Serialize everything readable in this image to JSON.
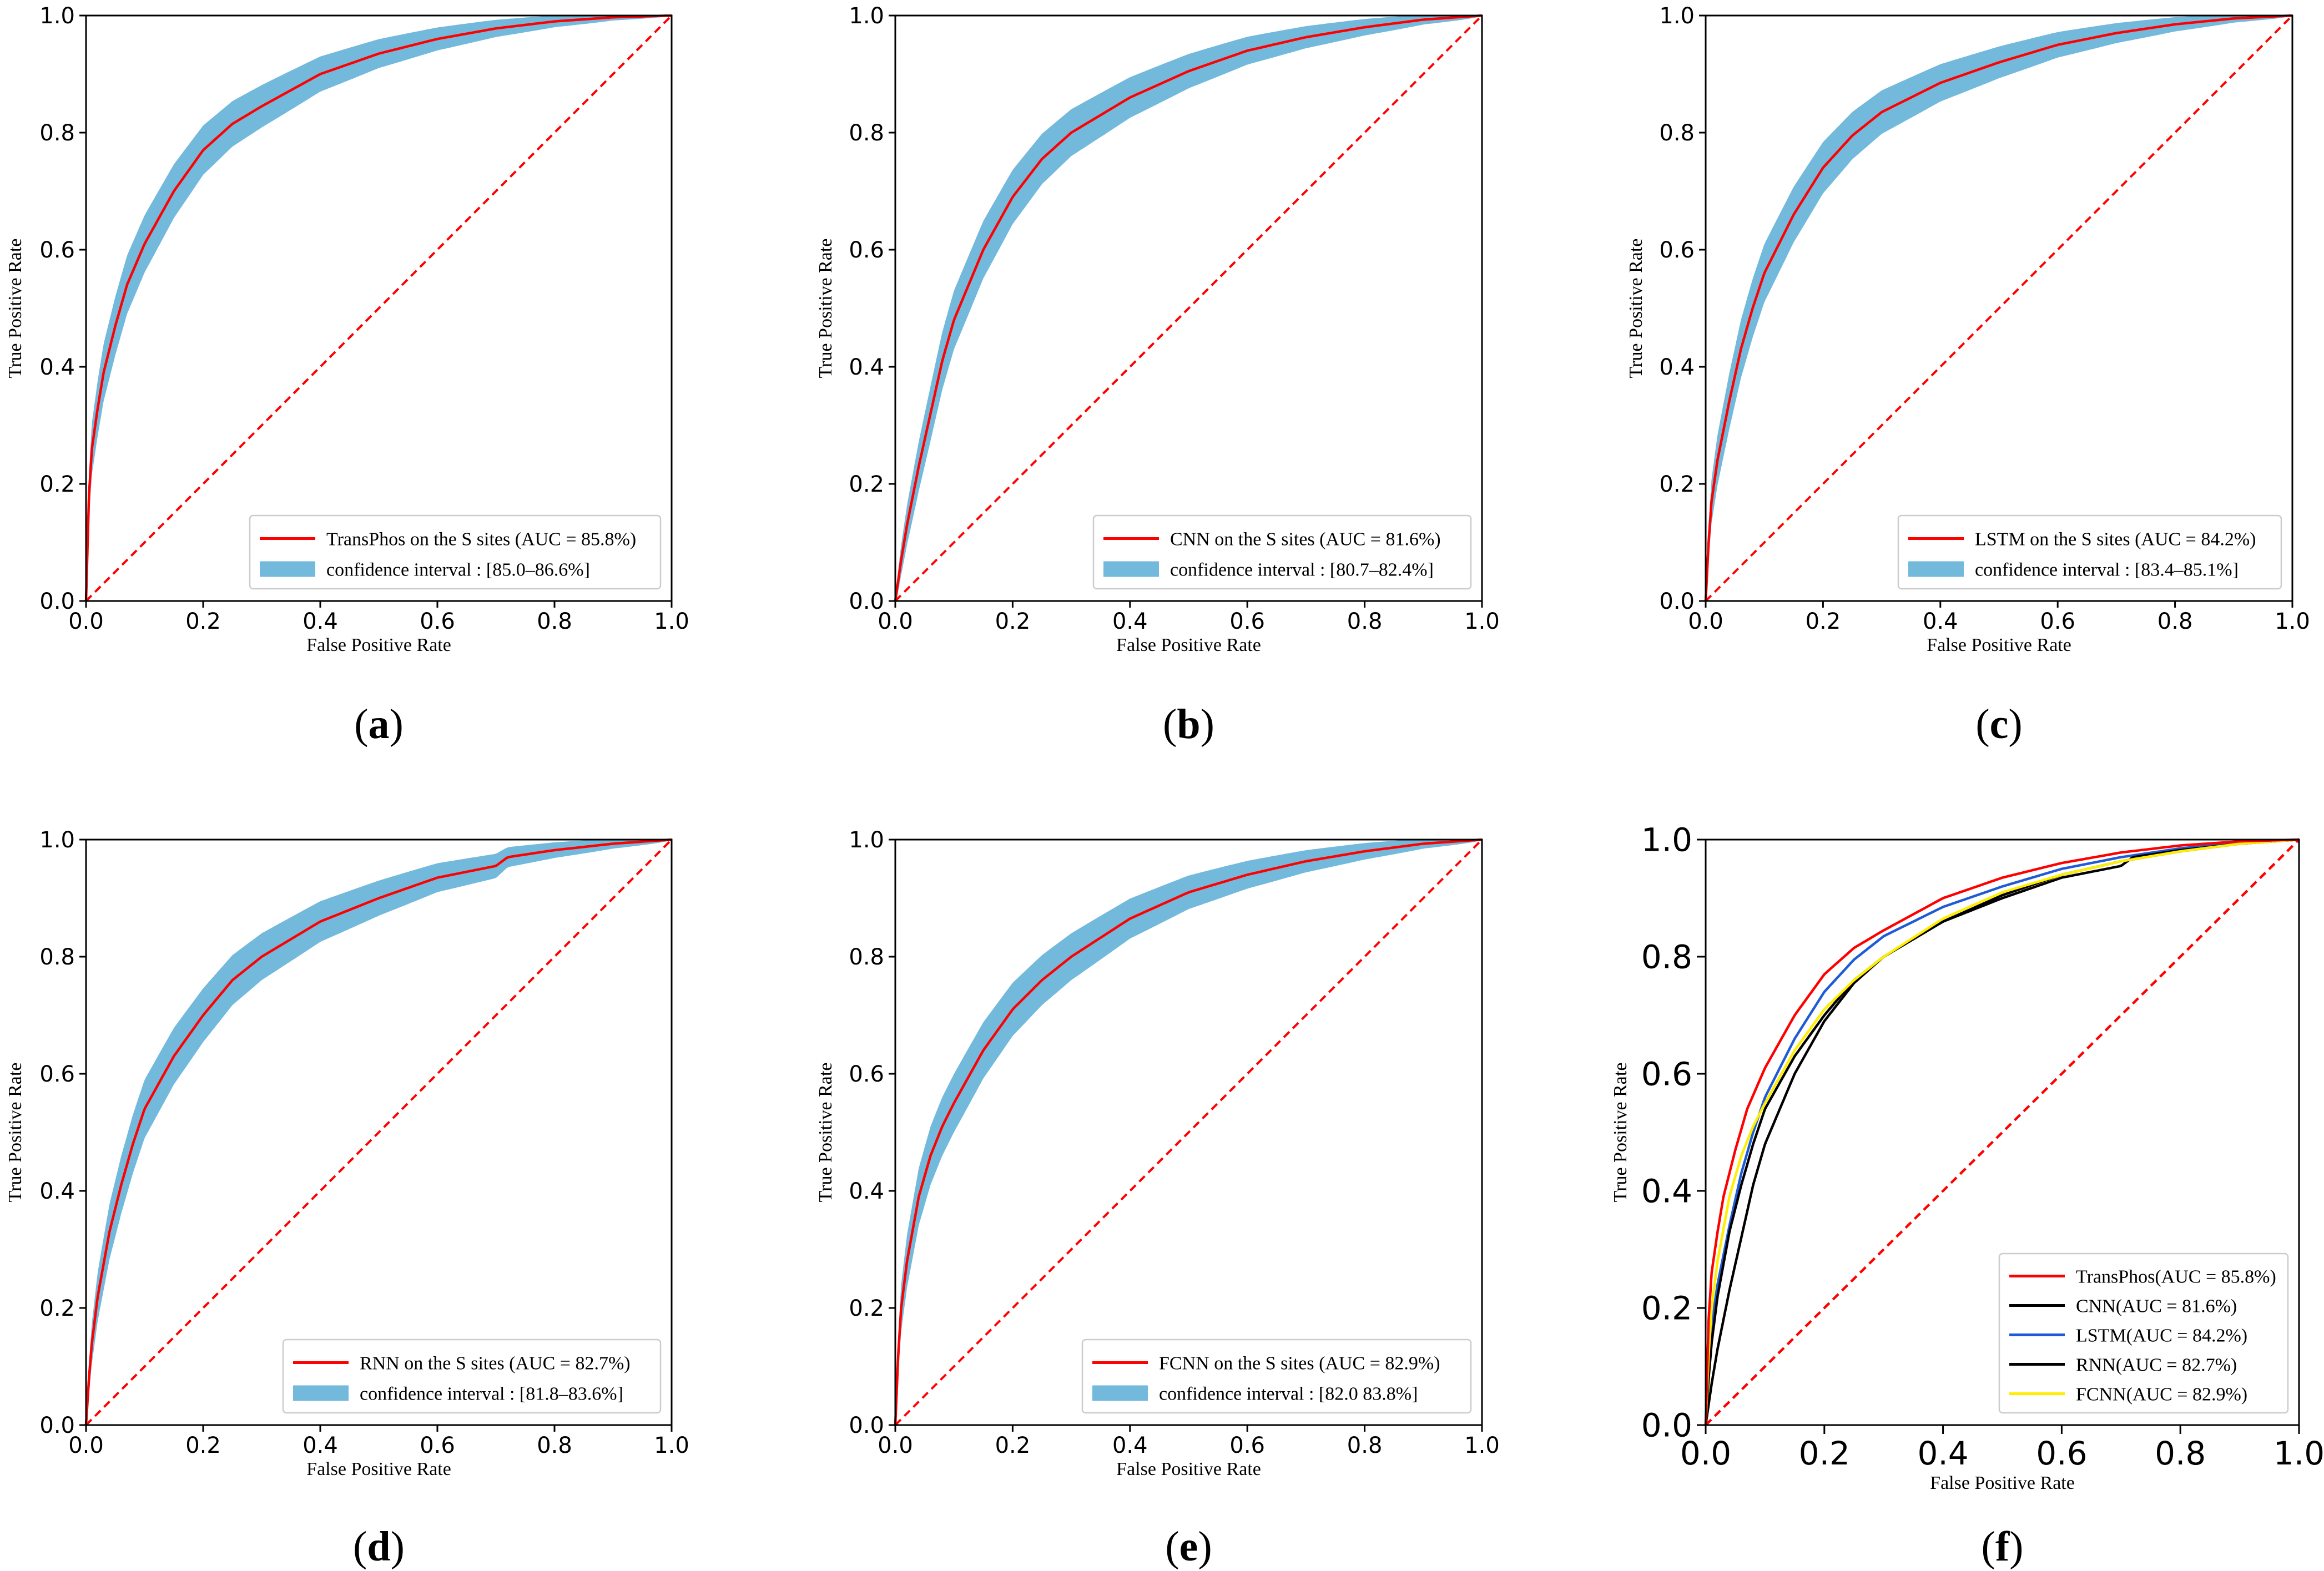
{
  "colors": {
    "band": "#72b9dc",
    "roc": "#ff0000",
    "diagonal": "#ff0000",
    "cnn_f": "#000000",
    "lstm_f": "#1f5bd6",
    "rnn_f": "#000000",
    "fcnn_f": "#ffee00"
  },
  "chart_data": [
    {
      "id": "a",
      "type": "line",
      "caption": {
        "open": "(",
        "letter": "a",
        "close": ")"
      },
      "xlabel": "False Positive Rate",
      "ylabel": "True Positive Rate",
      "xlim": [
        0,
        1
      ],
      "ylim": [
        0,
        1
      ],
      "xticks": [
        "0.0",
        "0.2",
        "0.4",
        "0.6",
        "0.8",
        "1.0"
      ],
      "yticks": [
        "0.0",
        "0.2",
        "0.4",
        "0.6",
        "0.8",
        "1.0"
      ],
      "series": [
        {
          "name": "TransPhos on the S sites (AUC = 85.8%)",
          "kind": "roc",
          "x": [
            0,
            0.005,
            0.01,
            0.02,
            0.03,
            0.05,
            0.07,
            0.1,
            0.15,
            0.2,
            0.25,
            0.3,
            0.4,
            0.5,
            0.6,
            0.7,
            0.8,
            0.9,
            1.0
          ],
          "y": [
            0,
            0.18,
            0.26,
            0.33,
            0.39,
            0.47,
            0.54,
            0.61,
            0.7,
            0.77,
            0.815,
            0.845,
            0.9,
            0.935,
            0.96,
            0.978,
            0.99,
            0.997,
            1.0
          ]
        },
        {
          "name": "confidence interval : [85.0–86.6%]",
          "kind": "band",
          "halfwidth": 0.05
        }
      ],
      "diagonal": true
    },
    {
      "id": "b",
      "type": "line",
      "caption": {
        "open": "(",
        "letter": "b",
        "close": ")"
      },
      "xlabel": "False Positive Rate",
      "ylabel": "True Positive Rate",
      "xlim": [
        0,
        1
      ],
      "ylim": [
        0,
        1
      ],
      "xticks": [
        "0.0",
        "0.2",
        "0.4",
        "0.6",
        "0.8",
        "1.0"
      ],
      "yticks": [
        "0.0",
        "0.2",
        "0.4",
        "0.6",
        "0.8",
        "1.0"
      ],
      "series": [
        {
          "name": "CNN on the S sites (AUC = 81.6%)",
          "kind": "roc",
          "x": [
            0,
            0.01,
            0.02,
            0.04,
            0.06,
            0.08,
            0.1,
            0.15,
            0.2,
            0.25,
            0.3,
            0.4,
            0.5,
            0.6,
            0.7,
            0.8,
            0.9,
            1.0
          ],
          "y": [
            0,
            0.07,
            0.13,
            0.23,
            0.32,
            0.41,
            0.48,
            0.6,
            0.69,
            0.755,
            0.8,
            0.86,
            0.905,
            0.94,
            0.963,
            0.98,
            0.993,
            1.0
          ]
        },
        {
          "name": "confidence interval : [80.7–82.4%]",
          "kind": "band",
          "halfwidth": 0.05
        }
      ],
      "diagonal": true
    },
    {
      "id": "c",
      "type": "line",
      "caption": {
        "open": "(",
        "letter": "c",
        "close": ")"
      },
      "xlabel": "False Positive Rate",
      "ylabel": "True Positive Rate",
      "xlim": [
        0,
        1
      ],
      "ylim": [
        0,
        1
      ],
      "xticks": [
        "0.0",
        "0.2",
        "0.4",
        "0.6",
        "0.8",
        "1.0"
      ],
      "yticks": [
        "0.0",
        "0.2",
        "0.4",
        "0.6",
        "0.8",
        "1.0"
      ],
      "series": [
        {
          "name": "LSTM on the S sites (AUC = 84.2%)",
          "kind": "roc",
          "x": [
            0,
            0.005,
            0.01,
            0.02,
            0.04,
            0.06,
            0.08,
            0.1,
            0.15,
            0.2,
            0.25,
            0.3,
            0.4,
            0.5,
            0.6,
            0.7,
            0.8,
            0.9,
            1.0
          ],
          "y": [
            0,
            0.1,
            0.17,
            0.24,
            0.34,
            0.43,
            0.5,
            0.56,
            0.66,
            0.74,
            0.795,
            0.835,
            0.885,
            0.92,
            0.95,
            0.97,
            0.985,
            0.995,
            1.0
          ]
        },
        {
          "name": "confidence interval : [83.4–85.1%]",
          "kind": "band",
          "halfwidth": 0.05
        }
      ],
      "diagonal": true
    },
    {
      "id": "d",
      "type": "line",
      "caption": {
        "open": "(",
        "letter": "d",
        "close": ")"
      },
      "xlabel": "False Positive Rate",
      "ylabel": "True Positive Rate",
      "xlim": [
        0,
        1
      ],
      "ylim": [
        0,
        1
      ],
      "xticks": [
        "0.0",
        "0.2",
        "0.4",
        "0.6",
        "0.8",
        "1.0"
      ],
      "yticks": [
        "0.0",
        "0.2",
        "0.4",
        "0.6",
        "0.8",
        "1.0"
      ],
      "series": [
        {
          "name": "RNN on the S sites (AUC = 82.7%)",
          "kind": "roc",
          "x": [
            0,
            0.005,
            0.01,
            0.02,
            0.04,
            0.06,
            0.08,
            0.1,
            0.15,
            0.2,
            0.25,
            0.3,
            0.4,
            0.5,
            0.6,
            0.7,
            0.72,
            0.8,
            0.9,
            1.0
          ],
          "y": [
            0,
            0.08,
            0.14,
            0.22,
            0.33,
            0.41,
            0.48,
            0.54,
            0.63,
            0.7,
            0.76,
            0.8,
            0.86,
            0.9,
            0.935,
            0.955,
            0.97,
            0.982,
            0.993,
            1.0
          ]
        },
        {
          "name": "confidence interval : [81.8–83.6%]",
          "kind": "band",
          "halfwidth": 0.05
        }
      ],
      "diagonal": true
    },
    {
      "id": "e",
      "type": "line",
      "caption": {
        "open": "(",
        "letter": "e",
        "close": ")"
      },
      "xlabel": "False Positive Rate",
      "ylabel": "True Positive Rate",
      "xlim": [
        0,
        1
      ],
      "ylim": [
        0,
        1
      ],
      "xticks": [
        "0.0",
        "0.2",
        "0.4",
        "0.6",
        "0.8",
        "1.0"
      ],
      "yticks": [
        "0.0",
        "0.2",
        "0.4",
        "0.6",
        "0.8",
        "1.0"
      ],
      "series": [
        {
          "name": "FCNN on the S sites (AUC = 82.9%)",
          "kind": "roc",
          "x": [
            0,
            0.005,
            0.01,
            0.02,
            0.04,
            0.06,
            0.08,
            0.1,
            0.15,
            0.2,
            0.25,
            0.3,
            0.4,
            0.5,
            0.6,
            0.7,
            0.8,
            0.9,
            1.0
          ],
          "y": [
            0,
            0.12,
            0.2,
            0.28,
            0.39,
            0.46,
            0.51,
            0.55,
            0.64,
            0.71,
            0.76,
            0.8,
            0.865,
            0.91,
            0.94,
            0.963,
            0.98,
            0.993,
            1.0
          ]
        },
        {
          "name": "confidence interval : [82.0 83.8%]",
          "kind": "band",
          "halfwidth": 0.05
        }
      ],
      "diagonal": true
    },
    {
      "id": "f",
      "type": "line",
      "caption": {
        "open": "(",
        "letter": "f",
        "close": ")"
      },
      "xlabel": "False Positive Rate",
      "ylabel": "True Positive Rate",
      "xlim": [
        0,
        1
      ],
      "ylim": [
        0,
        1
      ],
      "xticks": [
        "0.0",
        "0.2",
        "0.4",
        "0.6",
        "0.8",
        "1.0"
      ],
      "yticks": [
        "0.0",
        "0.2",
        "0.4",
        "0.6",
        "0.8",
        "1.0"
      ],
      "series": [
        {
          "name": "TransPhos(AUC = 85.8%)",
          "kind": "roc",
          "color_key": "roc",
          "x": [
            0,
            0.005,
            0.01,
            0.02,
            0.03,
            0.05,
            0.07,
            0.1,
            0.15,
            0.2,
            0.25,
            0.3,
            0.4,
            0.5,
            0.6,
            0.7,
            0.8,
            0.9,
            1.0
          ],
          "y": [
            0,
            0.18,
            0.26,
            0.33,
            0.39,
            0.47,
            0.54,
            0.61,
            0.7,
            0.77,
            0.815,
            0.845,
            0.9,
            0.935,
            0.96,
            0.978,
            0.99,
            0.997,
            1.0
          ]
        },
        {
          "name": "CNN(AUC = 81.6%)",
          "kind": "roc",
          "color_key": "cnn_f",
          "x": [
            0,
            0.01,
            0.02,
            0.04,
            0.06,
            0.08,
            0.1,
            0.15,
            0.2,
            0.25,
            0.3,
            0.4,
            0.5,
            0.6,
            0.7,
            0.8,
            0.9,
            1.0
          ],
          "y": [
            0,
            0.07,
            0.13,
            0.23,
            0.32,
            0.41,
            0.48,
            0.6,
            0.69,
            0.755,
            0.8,
            0.86,
            0.905,
            0.94,
            0.963,
            0.98,
            0.993,
            1.0
          ]
        },
        {
          "name": "LSTM(AUC = 84.2%)",
          "kind": "roc",
          "color_key": "lstm_f",
          "x": [
            0,
            0.005,
            0.01,
            0.02,
            0.04,
            0.06,
            0.08,
            0.1,
            0.15,
            0.2,
            0.25,
            0.3,
            0.4,
            0.5,
            0.6,
            0.7,
            0.8,
            0.9,
            1.0
          ],
          "y": [
            0,
            0.1,
            0.17,
            0.24,
            0.34,
            0.43,
            0.5,
            0.56,
            0.66,
            0.74,
            0.795,
            0.835,
            0.885,
            0.92,
            0.95,
            0.97,
            0.985,
            0.995,
            1.0
          ]
        },
        {
          "name": "RNN(AUC = 82.7%)",
          "kind": "roc",
          "color_key": "rnn_f",
          "x": [
            0,
            0.005,
            0.01,
            0.02,
            0.04,
            0.06,
            0.08,
            0.1,
            0.15,
            0.2,
            0.25,
            0.3,
            0.4,
            0.5,
            0.6,
            0.7,
            0.72,
            0.8,
            0.9,
            1.0
          ],
          "y": [
            0,
            0.08,
            0.14,
            0.22,
            0.33,
            0.41,
            0.48,
            0.54,
            0.63,
            0.7,
            0.76,
            0.8,
            0.86,
            0.9,
            0.935,
            0.955,
            0.97,
            0.982,
            0.993,
            1.0
          ]
        },
        {
          "name": "FCNN(AUC = 82.9%)",
          "kind": "roc",
          "color_key": "fcnn_f",
          "x": [
            0,
            0.005,
            0.01,
            0.02,
            0.04,
            0.06,
            0.08,
            0.1,
            0.15,
            0.2,
            0.25,
            0.3,
            0.4,
            0.5,
            0.6,
            0.7,
            0.8,
            0.9,
            1.0
          ],
          "y": [
            0,
            0.12,
            0.2,
            0.28,
            0.39,
            0.46,
            0.51,
            0.55,
            0.64,
            0.71,
            0.76,
            0.8,
            0.865,
            0.91,
            0.94,
            0.963,
            0.98,
            0.993,
            1.0
          ]
        }
      ],
      "diagonal": true
    }
  ]
}
